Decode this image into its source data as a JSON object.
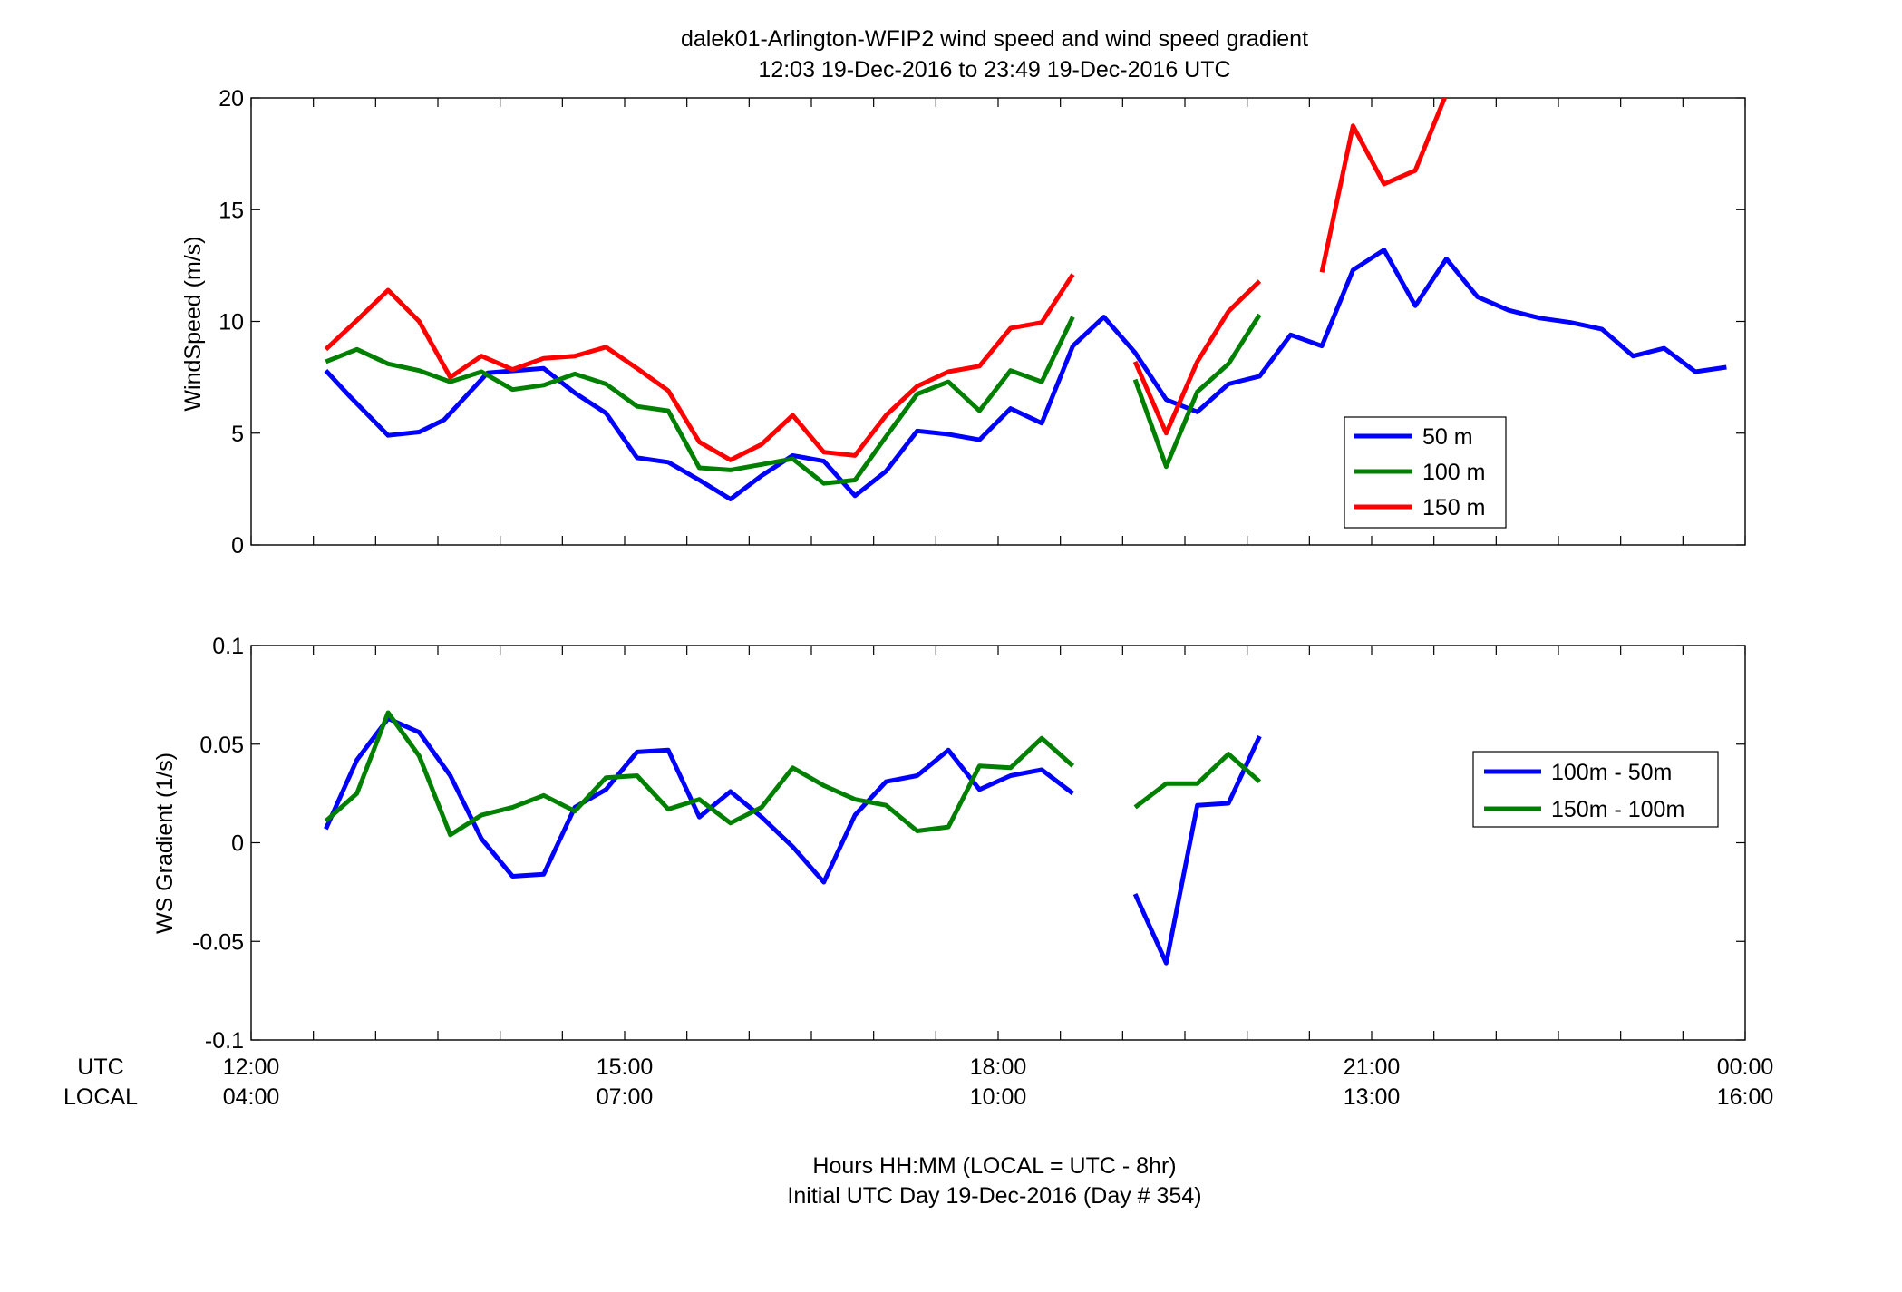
{
  "figure": {
    "title_line1": "dalek01-Arlington-WFIP2  wind speed and wind speed gradient",
    "title_line2": "12:03 19-Dec-2016 to 23:49 19-Dec-2016  UTC",
    "xaxis_row_labels": [
      "UTC",
      "LOCAL"
    ],
    "xlabel_line1": "Hours HH:MM  (LOCAL = UTC - 8hr)",
    "xlabel_line2": "Initial UTC Day 19-Dec-2016 (Day # 354)",
    "x_ticks_utc": [
      "12:00",
      "15:00",
      "18:00",
      "21:00",
      "00:00"
    ],
    "x_ticks_local": [
      "04:00",
      "07:00",
      "10:00",
      "13:00",
      "16:00"
    ]
  },
  "chart_data": [
    {
      "type": "line",
      "title": "",
      "xlabel": "",
      "ylabel": "WindSpeed (m/s)",
      "xlim": [
        12,
        24
      ],
      "ylim": [
        0,
        20
      ],
      "yticks": [
        0,
        5,
        10,
        15,
        20
      ],
      "ytick_labels": [
        "0",
        "5",
        "10",
        "15",
        "20"
      ],
      "grid": false,
      "legend_position": "right-center",
      "series": [
        {
          "name": "50 m",
          "color": "#0000ff",
          "points": [
            [
              12.6,
              7.8
            ],
            [
              12.8,
              6.6
            ],
            [
              13.1,
              4.9
            ],
            [
              13.35,
              5.05
            ],
            [
              13.55,
              5.6
            ],
            [
              13.9,
              7.7
            ],
            [
              14.35,
              7.9
            ],
            [
              14.6,
              6.8
            ],
            [
              14.85,
              5.9
            ],
            [
              15.1,
              3.9
            ],
            [
              15.35,
              3.7
            ],
            [
              15.6,
              2.9
            ],
            [
              15.85,
              2.05
            ],
            [
              16.1,
              3.1
            ],
            [
              16.35,
              4.0
            ],
            [
              16.6,
              3.75
            ],
            [
              16.85,
              2.2
            ],
            [
              17.1,
              3.3
            ],
            [
              17.35,
              5.1
            ],
            [
              17.6,
              4.95
            ],
            [
              17.85,
              4.7
            ],
            [
              18.1,
              6.1
            ],
            [
              18.35,
              5.45
            ],
            [
              18.6,
              8.9
            ],
            [
              18.85,
              10.2
            ],
            [
              19.1,
              8.6
            ],
            [
              19.35,
              6.5
            ],
            [
              19.6,
              5.95
            ],
            [
              19.85,
              7.2
            ],
            [
              20.1,
              7.55
            ],
            [
              20.35,
              9.4
            ],
            [
              20.6,
              8.9
            ],
            [
              20.85,
              12.3
            ],
            [
              21.1,
              13.2
            ],
            [
              21.35,
              10.7
            ],
            [
              21.6,
              12.8
            ],
            [
              21.85,
              11.1
            ],
            [
              22.1,
              10.5
            ],
            [
              22.35,
              10.15
            ],
            [
              22.6,
              9.95
            ],
            [
              22.85,
              9.65
            ],
            [
              23.1,
              8.45
            ],
            [
              23.35,
              8.8
            ],
            [
              23.6,
              7.75
            ],
            [
              23.85,
              7.95
            ]
          ]
        },
        {
          "name": "100 m",
          "color": "#008000",
          "points": [
            [
              12.6,
              8.2
            ],
            [
              12.85,
              8.75
            ],
            [
              13.1,
              8.1
            ],
            [
              13.35,
              7.8
            ],
            [
              13.6,
              7.3
            ],
            [
              13.85,
              7.75
            ],
            [
              14.1,
              6.95
            ],
            [
              14.35,
              7.15
            ],
            [
              14.6,
              7.65
            ],
            [
              14.85,
              7.2
            ],
            [
              15.1,
              6.2
            ],
            [
              15.35,
              6.0
            ],
            [
              15.6,
              3.45
            ],
            [
              15.85,
              3.35
            ],
            [
              16.1,
              3.6
            ],
            [
              16.35,
              3.85
            ],
            [
              16.6,
              2.75
            ],
            [
              16.85,
              2.9
            ],
            [
              17.1,
              4.85
            ],
            [
              17.35,
              6.75
            ],
            [
              17.6,
              7.3
            ],
            [
              17.85,
              6.0
            ],
            [
              18.1,
              7.8
            ],
            [
              18.35,
              7.3
            ],
            [
              18.6,
              10.2
            ],
            null,
            [
              19.1,
              7.4
            ],
            [
              19.35,
              3.5
            ],
            [
              19.6,
              6.85
            ],
            [
              19.85,
              8.1
            ],
            [
              20.1,
              10.3
            ]
          ]
        },
        {
          "name": "150 m",
          "color": "#ff0000",
          "points": [
            [
              12.6,
              8.75
            ],
            [
              12.85,
              10.05
            ],
            [
              13.1,
              11.4
            ],
            [
              13.35,
              10.0
            ],
            [
              13.6,
              7.5
            ],
            [
              13.85,
              8.45
            ],
            [
              14.1,
              7.85
            ],
            [
              14.35,
              8.35
            ],
            [
              14.6,
              8.45
            ],
            [
              14.85,
              8.85
            ],
            [
              15.1,
              7.9
            ],
            [
              15.35,
              6.9
            ],
            [
              15.6,
              4.6
            ],
            [
              15.85,
              3.8
            ],
            [
              16.1,
              4.5
            ],
            [
              16.35,
              5.8
            ],
            [
              16.6,
              4.15
            ],
            [
              16.85,
              4.0
            ],
            [
              17.1,
              5.8
            ],
            [
              17.35,
              7.1
            ],
            [
              17.6,
              7.75
            ],
            [
              17.85,
              8.0
            ],
            [
              18.1,
              9.7
            ],
            [
              18.35,
              9.95
            ],
            [
              18.6,
              12.1
            ],
            null,
            [
              19.1,
              8.2
            ],
            [
              19.35,
              5.0
            ],
            [
              19.6,
              8.2
            ],
            [
              19.85,
              10.45
            ],
            [
              20.1,
              11.8
            ],
            null,
            [
              20.6,
              12.2
            ],
            [
              20.85,
              18.75
            ],
            [
              21.1,
              16.15
            ],
            [
              21.35,
              16.75
            ],
            [
              21.6,
              20.2
            ]
          ]
        }
      ]
    },
    {
      "type": "line",
      "title": "",
      "xlabel": "",
      "ylabel": "WS Gradient (1/s)",
      "xlim": [
        12,
        24
      ],
      "ylim": [
        -0.1,
        0.1
      ],
      "yticks": [
        -0.1,
        -0.05,
        0,
        0.05,
        0.1
      ],
      "ytick_labels": [
        "-0.1",
        "-0.05",
        "0",
        "0.05",
        "0.1"
      ],
      "grid": false,
      "legend_position": "right-center",
      "series": [
        {
          "name": "100m - 50m",
          "color": "#0000ff",
          "points": [
            [
              12.6,
              0.007
            ],
            [
              12.85,
              0.042
            ],
            [
              13.1,
              0.063
            ],
            [
              13.35,
              0.056
            ],
            [
              13.6,
              0.034
            ],
            [
              13.85,
              0.002
            ],
            [
              14.1,
              -0.017
            ],
            [
              14.35,
              -0.016
            ],
            [
              14.6,
              0.018
            ],
            [
              14.85,
              0.027
            ],
            [
              15.1,
              0.046
            ],
            [
              15.35,
              0.047
            ],
            [
              15.6,
              0.013
            ],
            [
              15.85,
              0.026
            ],
            [
              16.1,
              0.013
            ],
            [
              16.35,
              -0.002
            ],
            [
              16.6,
              -0.02
            ],
            [
              16.85,
              0.014
            ],
            [
              17.1,
              0.031
            ],
            [
              17.35,
              0.034
            ],
            [
              17.6,
              0.047
            ],
            [
              17.85,
              0.027
            ],
            [
              18.1,
              0.034
            ],
            [
              18.35,
              0.037
            ],
            [
              18.6,
              0.025
            ],
            null,
            [
              19.1,
              -0.026
            ],
            [
              19.35,
              -0.061
            ],
            [
              19.6,
              0.019
            ],
            [
              19.85,
              0.02
            ],
            [
              20.1,
              0.054
            ]
          ]
        },
        {
          "name": "150m - 100m",
          "color": "#008000",
          "points": [
            [
              12.6,
              0.011
            ],
            [
              12.85,
              0.025
            ],
            [
              13.1,
              0.066
            ],
            [
              13.35,
              0.044
            ],
            [
              13.6,
              0.004
            ],
            [
              13.85,
              0.014
            ],
            [
              14.1,
              0.018
            ],
            [
              14.35,
              0.024
            ],
            [
              14.6,
              0.016
            ],
            [
              14.85,
              0.033
            ],
            [
              15.1,
              0.034
            ],
            [
              15.35,
              0.017
            ],
            [
              15.6,
              0.022
            ],
            [
              15.85,
              0.01
            ],
            [
              16.1,
              0.018
            ],
            [
              16.35,
              0.038
            ],
            [
              16.6,
              0.029
            ],
            [
              16.85,
              0.022
            ],
            [
              17.1,
              0.019
            ],
            [
              17.35,
              0.006
            ],
            [
              17.6,
              0.008
            ],
            [
              17.85,
              0.039
            ],
            [
              18.1,
              0.038
            ],
            [
              18.35,
              0.053
            ],
            [
              18.6,
              0.039
            ],
            null,
            [
              19.1,
              0.018
            ],
            [
              19.35,
              0.03
            ],
            [
              19.6,
              0.03
            ],
            [
              19.85,
              0.045
            ],
            [
              20.1,
              0.031
            ]
          ]
        }
      ]
    }
  ]
}
